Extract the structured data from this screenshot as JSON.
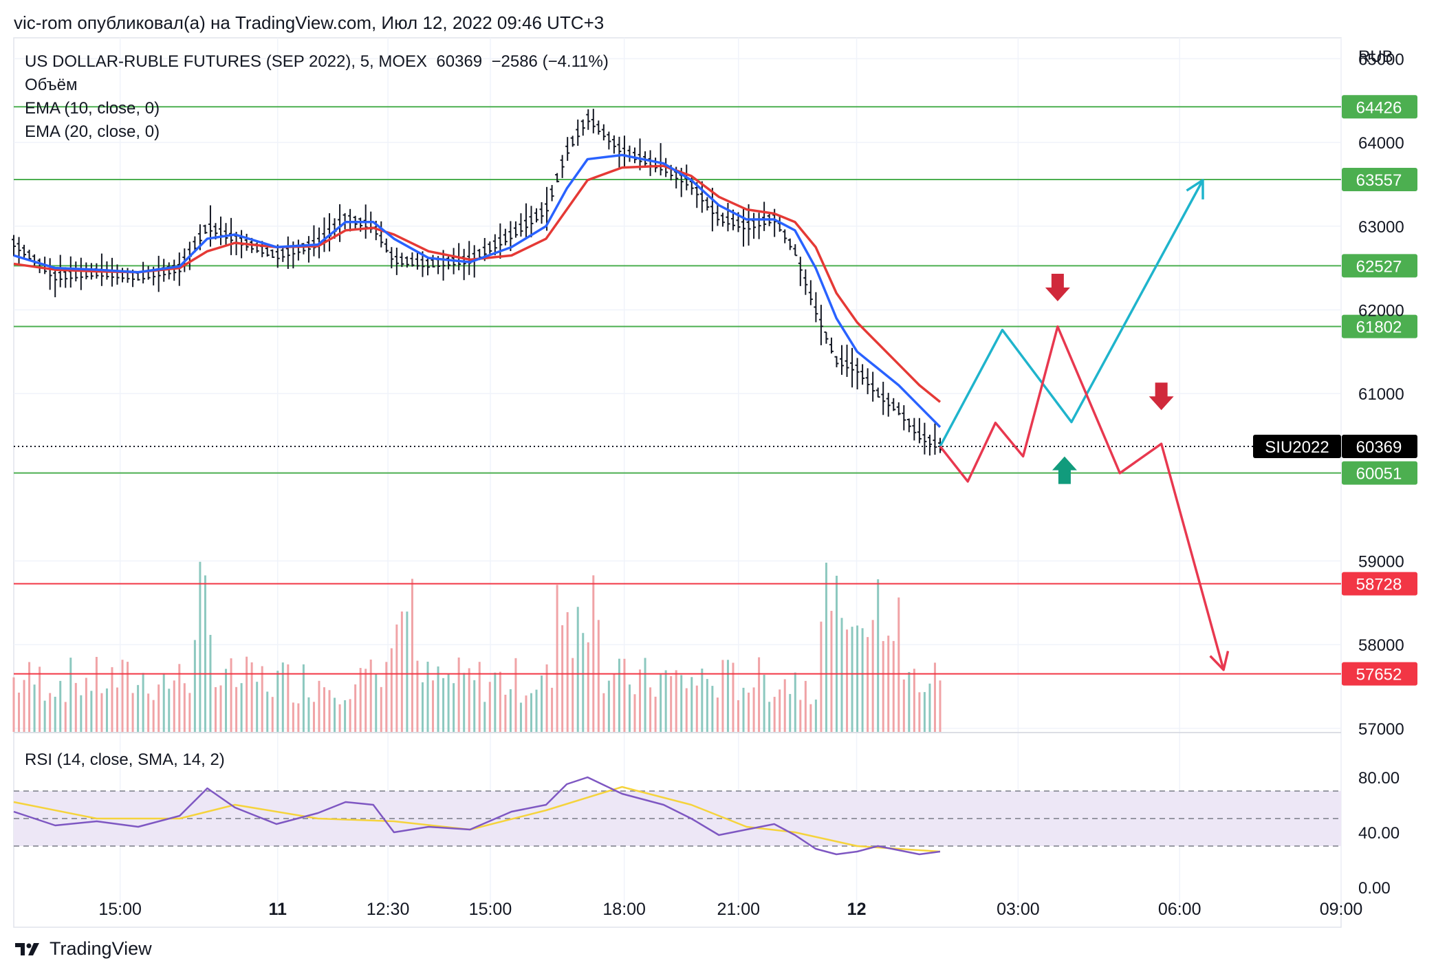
{
  "header": {
    "published_by": "vic-rom опубликовал(а) на TradingView.com, Июл 12, 2022 09:46 UTC+3"
  },
  "legend": {
    "symbol": "US DOLLAR-RUBLE FUTURES (SEP 2022), 5, MOEX",
    "last": "60369",
    "change": "−2586 (−4.11%)",
    "volume": "Объём",
    "ema10": "EMA (10, close, 0)",
    "ema20": "EMA (20, close, 0)"
  },
  "footer": {
    "brand": "TradingView"
  },
  "chart_data": {
    "type": "line",
    "title": "",
    "currency_label": "RUB",
    "price_axis": {
      "range": [
        57000,
        65000
      ],
      "ticks": [
        "65000",
        "64000",
        "63000",
        "62000",
        "61000",
        "59000",
        "58000",
        "57000"
      ],
      "tick_values": [
        65000,
        64000,
        63000,
        62000,
        61000,
        59000,
        58000,
        57000
      ]
    },
    "time_axis": {
      "labels": [
        "15:00",
        "11",
        "12:30",
        "15:00",
        "18:00",
        "21:00",
        "12",
        "03:00",
        "06:00",
        "09:00"
      ]
    },
    "levels": [
      {
        "value": 64426,
        "label": "64426",
        "color": "#4caf50"
      },
      {
        "value": 63557,
        "label": "63557",
        "color": "#4caf50"
      },
      {
        "value": 62527,
        "label": "62527",
        "color": "#4caf50"
      },
      {
        "value": 61802,
        "label": "61802",
        "color": "#4caf50"
      },
      {
        "value": 60051,
        "label": "60051",
        "color": "#4caf50"
      },
      {
        "value": 58728,
        "label": "58728",
        "color": "#f23645"
      },
      {
        "value": 57652,
        "label": "57652",
        "color": "#f23645"
      }
    ],
    "current": {
      "symbol": "SIU2022",
      "value": 60369,
      "label": "60369"
    },
    "price_series": [
      {
        "t": 0,
        "p": 62800
      },
      {
        "t": 6,
        "p": 62400
      },
      {
        "t": 12,
        "p": 62450
      },
      {
        "t": 18,
        "p": 62400
      },
      {
        "t": 24,
        "p": 62500
      },
      {
        "t": 28,
        "p": 63000
      },
      {
        "t": 32,
        "p": 62850
      },
      {
        "t": 38,
        "p": 62650
      },
      {
        "t": 44,
        "p": 62800
      },
      {
        "t": 48,
        "p": 63100
      },
      {
        "t": 52,
        "p": 63000
      },
      {
        "t": 55,
        "p": 62600
      },
      {
        "t": 60,
        "p": 62550
      },
      {
        "t": 66,
        "p": 62600
      },
      {
        "t": 72,
        "p": 62900
      },
      {
        "t": 77,
        "p": 63200
      },
      {
        "t": 80,
        "p": 63900
      },
      {
        "t": 83,
        "p": 64300
      },
      {
        "t": 88,
        "p": 63900
      },
      {
        "t": 94,
        "p": 63700
      },
      {
        "t": 98,
        "p": 63500
      },
      {
        "t": 102,
        "p": 63100
      },
      {
        "t": 106,
        "p": 63000
      },
      {
        "t": 110,
        "p": 63100
      },
      {
        "t": 113,
        "p": 62700
      },
      {
        "t": 116,
        "p": 62000
      },
      {
        "t": 119,
        "p": 61400
      },
      {
        "t": 122,
        "p": 61300
      },
      {
        "t": 125,
        "p": 61000
      },
      {
        "t": 128,
        "p": 60800
      },
      {
        "t": 131,
        "p": 60500
      },
      {
        "t": 134,
        "p": 60369
      }
    ],
    "ema10": [
      {
        "t": 0,
        "p": 62650
      },
      {
        "t": 6,
        "p": 62500
      },
      {
        "t": 12,
        "p": 62480
      },
      {
        "t": 18,
        "p": 62450
      },
      {
        "t": 24,
        "p": 62520
      },
      {
        "t": 28,
        "p": 62850
      },
      {
        "t": 32,
        "p": 62900
      },
      {
        "t": 38,
        "p": 62750
      },
      {
        "t": 44,
        "p": 62780
      },
      {
        "t": 48,
        "p": 63050
      },
      {
        "t": 52,
        "p": 63050
      },
      {
        "t": 55,
        "p": 62850
      },
      {
        "t": 60,
        "p": 62620
      },
      {
        "t": 66,
        "p": 62570
      },
      {
        "t": 72,
        "p": 62750
      },
      {
        "t": 77,
        "p": 63000
      },
      {
        "t": 80,
        "p": 63450
      },
      {
        "t": 83,
        "p": 63800
      },
      {
        "t": 88,
        "p": 63850
      },
      {
        "t": 94,
        "p": 63750
      },
      {
        "t": 98,
        "p": 63550
      },
      {
        "t": 102,
        "p": 63250
      },
      {
        "t": 106,
        "p": 63080
      },
      {
        "t": 110,
        "p": 63080
      },
      {
        "t": 113,
        "p": 62950
      },
      {
        "t": 116,
        "p": 62500
      },
      {
        "t": 119,
        "p": 61900
      },
      {
        "t": 122,
        "p": 61500
      },
      {
        "t": 125,
        "p": 61300
      },
      {
        "t": 128,
        "p": 61100
      },
      {
        "t": 131,
        "p": 60850
      },
      {
        "t": 134,
        "p": 60600
      }
    ],
    "ema20": [
      {
        "t": 0,
        "p": 62550
      },
      {
        "t": 6,
        "p": 62480
      },
      {
        "t": 12,
        "p": 62460
      },
      {
        "t": 18,
        "p": 62450
      },
      {
        "t": 24,
        "p": 62500
      },
      {
        "t": 28,
        "p": 62700
      },
      {
        "t": 32,
        "p": 62800
      },
      {
        "t": 38,
        "p": 62750
      },
      {
        "t": 44,
        "p": 62760
      },
      {
        "t": 48,
        "p": 62950
      },
      {
        "t": 52,
        "p": 62980
      },
      {
        "t": 55,
        "p": 62900
      },
      {
        "t": 60,
        "p": 62700
      },
      {
        "t": 66,
        "p": 62600
      },
      {
        "t": 72,
        "p": 62650
      },
      {
        "t": 77,
        "p": 62850
      },
      {
        "t": 80,
        "p": 63200
      },
      {
        "t": 83,
        "p": 63550
      },
      {
        "t": 88,
        "p": 63700
      },
      {
        "t": 94,
        "p": 63720
      },
      {
        "t": 98,
        "p": 63600
      },
      {
        "t": 102,
        "p": 63350
      },
      {
        "t": 106,
        "p": 63200
      },
      {
        "t": 110,
        "p": 63150
      },
      {
        "t": 113,
        "p": 63050
      },
      {
        "t": 116,
        "p": 62750
      },
      {
        "t": 119,
        "p": 62200
      },
      {
        "t": 122,
        "p": 61850
      },
      {
        "t": 125,
        "p": 61600
      },
      {
        "t": 128,
        "p": 61350
      },
      {
        "t": 131,
        "p": 61100
      },
      {
        "t": 134,
        "p": 60900
      }
    ],
    "forecast_cyan": [
      {
        "t": 134,
        "p": 60369
      },
      {
        "t": 143,
        "p": 61760
      },
      {
        "t": 153,
        "p": 60660
      },
      {
        "t": 172,
        "p": 63550
      }
    ],
    "forecast_red": [
      {
        "t": 134,
        "p": 60369
      },
      {
        "t": 138,
        "p": 59950
      },
      {
        "t": 142,
        "p": 60650
      },
      {
        "t": 146,
        "p": 60250
      },
      {
        "t": 151,
        "p": 61800
      },
      {
        "t": 160,
        "p": 60050
      },
      {
        "t": 166,
        "p": 60400
      },
      {
        "t": 175,
        "p": 57700
      }
    ],
    "signals": [
      {
        "type": "down",
        "t": 151,
        "p": 62250,
        "color": "#d0293b"
      },
      {
        "type": "down",
        "t": 166,
        "p": 60950,
        "color": "#d0293b"
      },
      {
        "type": "up",
        "t": 152,
        "p": 60100,
        "color": "#119b7c"
      }
    ],
    "rsi": {
      "label": "RSI (14, close, SMA, 14, 2)",
      "range": [
        0,
        100
      ],
      "ticks": [
        "80.00",
        "40.00",
        "0.00"
      ],
      "tick_values": [
        80,
        40,
        0
      ],
      "bands": [
        70,
        50,
        30
      ],
      "series": [
        {
          "t": 0,
          "v": 55
        },
        {
          "t": 6,
          "v": 45
        },
        {
          "t": 12,
          "v": 48
        },
        {
          "t": 18,
          "v": 44
        },
        {
          "t": 24,
          "v": 52
        },
        {
          "t": 28,
          "v": 72
        },
        {
          "t": 32,
          "v": 58
        },
        {
          "t": 38,
          "v": 46
        },
        {
          "t": 44,
          "v": 54
        },
        {
          "t": 48,
          "v": 62
        },
        {
          "t": 52,
          "v": 60
        },
        {
          "t": 55,
          "v": 40
        },
        {
          "t": 60,
          "v": 44
        },
        {
          "t": 66,
          "v": 42
        },
        {
          "t": 72,
          "v": 55
        },
        {
          "t": 77,
          "v": 60
        },
        {
          "t": 80,
          "v": 75
        },
        {
          "t": 83,
          "v": 80
        },
        {
          "t": 88,
          "v": 68
        },
        {
          "t": 94,
          "v": 60
        },
        {
          "t": 98,
          "v": 50
        },
        {
          "t": 102,
          "v": 38
        },
        {
          "t": 106,
          "v": 42
        },
        {
          "t": 110,
          "v": 46
        },
        {
          "t": 113,
          "v": 38
        },
        {
          "t": 116,
          "v": 28
        },
        {
          "t": 119,
          "v": 24
        },
        {
          "t": 122,
          "v": 26
        },
        {
          "t": 125,
          "v": 30
        },
        {
          "t": 128,
          "v": 27
        },
        {
          "t": 131,
          "v": 24
        },
        {
          "t": 134,
          "v": 26
        }
      ],
      "sma": [
        {
          "t": 0,
          "v": 62
        },
        {
          "t": 12,
          "v": 50
        },
        {
          "t": 24,
          "v": 50
        },
        {
          "t": 32,
          "v": 60
        },
        {
          "t": 44,
          "v": 50
        },
        {
          "t": 55,
          "v": 48
        },
        {
          "t": 66,
          "v": 42
        },
        {
          "t": 77,
          "v": 56
        },
        {
          "t": 88,
          "v": 73
        },
        {
          "t": 98,
          "v": 60
        },
        {
          "t": 106,
          "v": 44
        },
        {
          "t": 113,
          "v": 40
        },
        {
          "t": 122,
          "v": 30
        },
        {
          "t": 134,
          "v": 26
        }
      ]
    },
    "colors": {
      "ema10": "#2962ff",
      "ema20": "#e53935",
      "bars": "#131722",
      "forecast_cyan": "#1fb4cc",
      "forecast_red": "#e8384f",
      "volume_up": "#8cc8bf",
      "volume_down": "#f0a3a6",
      "rsi_line": "#7e57c2",
      "rsi_sma": "#f5d33c",
      "rsi_band": "#ede7f6"
    }
  }
}
